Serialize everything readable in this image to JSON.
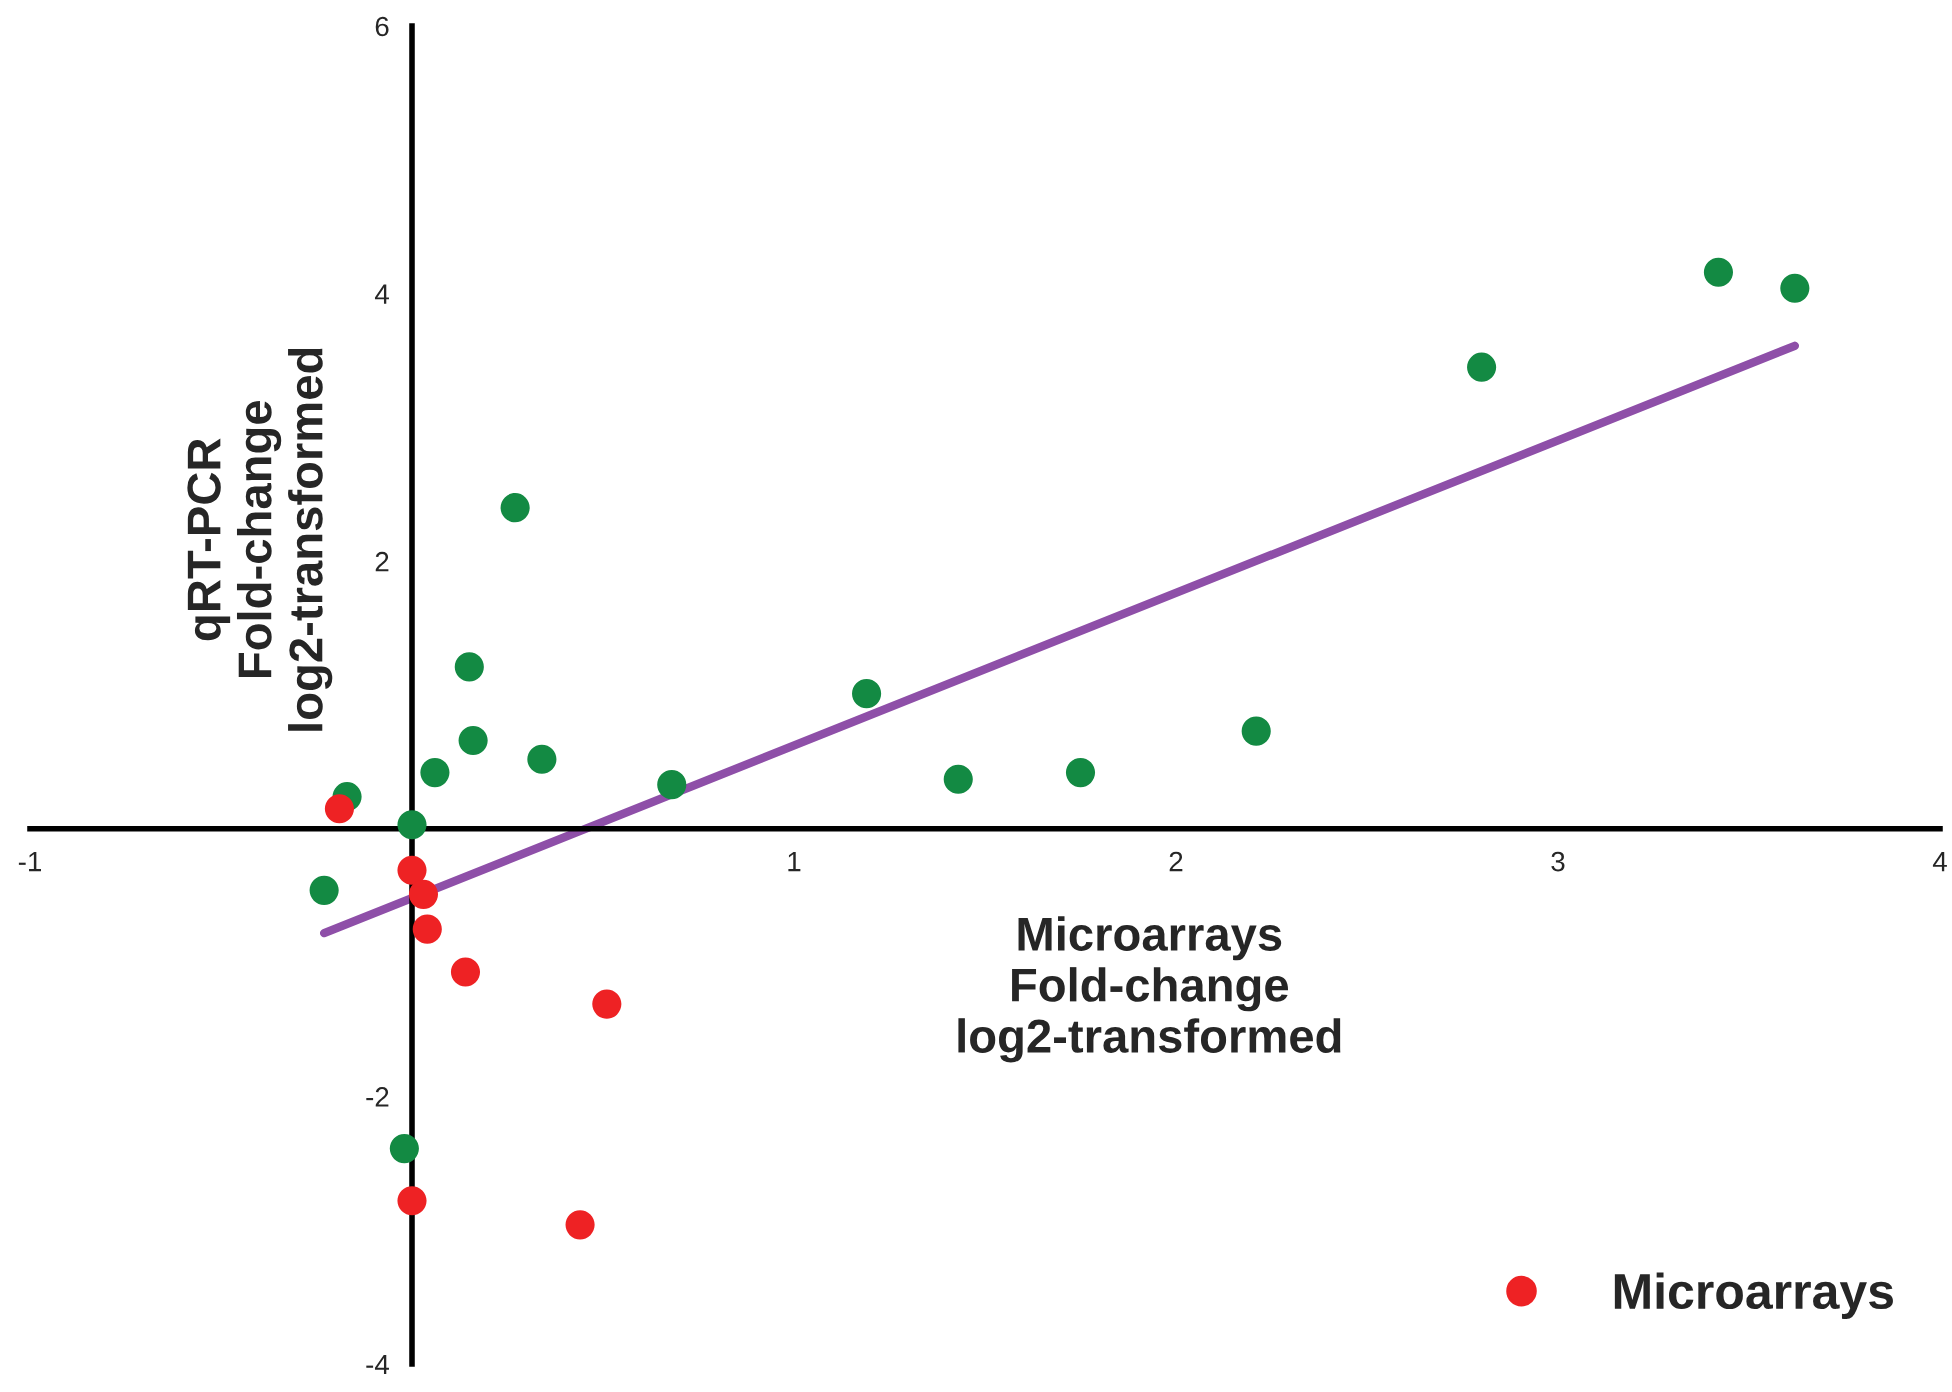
{
  "chart_data": {
    "type": "scatter",
    "xlabel": "Microarrays\nFold-change\nlog2-transformed",
    "ylabel": "qRT-PCR\nFold-change\nlog2-transformed",
    "xlim": [
      -1,
      4
    ],
    "ylim": [
      -4,
      6
    ],
    "xticks": [
      -1,
      1,
      2,
      3,
      4
    ],
    "yticks": [
      -4,
      -2,
      2,
      4,
      6
    ],
    "grid": false,
    "legend": "bottom right",
    "marker": "circle",
    "series": [
      {
        "color": "#138a43",
        "x": [
          -0.17,
          0.0,
          0.06,
          0.16,
          0.15,
          0.27,
          0.34,
          0.68,
          1.19,
          1.43,
          1.75,
          2.21,
          2.8,
          3.42,
          3.62,
          -0.23,
          -0.02
        ],
        "values": [
          0.24,
          0.03,
          0.42,
          0.66,
          1.21,
          2.4,
          0.52,
          0.33,
          1.01,
          0.37,
          0.42,
          0.73,
          3.45,
          4.16,
          4.04,
          -0.46,
          -2.39
        ]
      },
      {
        "name": "Microarrays",
        "color": "#ee2224",
        "x": [
          -0.19,
          0.0,
          0.03,
          0.04,
          0.14,
          0.51,
          0.0,
          0.44
        ],
        "values": [
          0.15,
          -0.31,
          -0.49,
          -0.75,
          -1.07,
          -1.31,
          -2.78,
          -2.96
        ]
      },
      {
        "type": "line",
        "color": "#8e4fa8",
        "line_style": "solid",
        "marker": "none",
        "x": [
          -0.23,
          3.62
        ],
        "values": [
          -0.78,
          3.61
        ]
      }
    ]
  }
}
